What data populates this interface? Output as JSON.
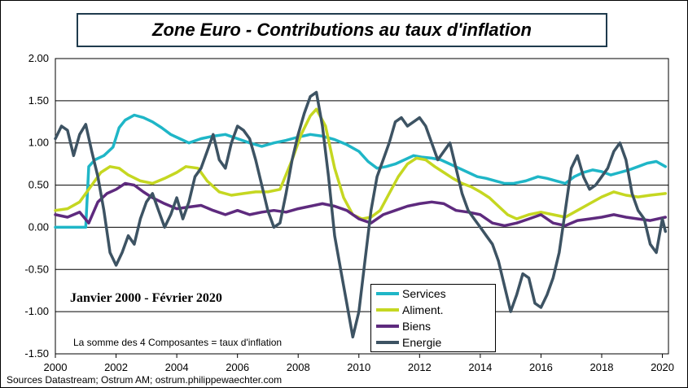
{
  "title": "Zone Euro - Contributions au taux d'inflation",
  "period_label": "Janvier 2000 - Février 2020",
  "note": "La somme des 4 Composantes = taux d'inflation",
  "source": "Sources Datastream; Ostrum AM; ostrum.philippewaechter.com",
  "colors": {
    "services": "#1fb6c7",
    "aliment": "#c5d721",
    "biens": "#5e2a7e",
    "energie": "#3d5363"
  },
  "chart_data": {
    "type": "line",
    "title": "Zone Euro - Contributions au taux d'inflation",
    "xlabel": "",
    "ylabel": "",
    "xlim": [
      2000,
      2020.2
    ],
    "ylim": [
      -1.5,
      2.0
    ],
    "grid": "horizontal",
    "legend_position": "bottom-right",
    "x_ticks": [
      "2000",
      "2002",
      "2004",
      "2006",
      "2008",
      "2010",
      "2012",
      "2014",
      "2016",
      "2018",
      "2020"
    ],
    "y_ticks": [
      "2.00",
      "1.50",
      "1.00",
      "0.50",
      "0.00",
      "-0.50",
      "-1.00",
      "-1.50"
    ],
    "series": [
      {
        "name": "Services",
        "color": "#1fb6c7",
        "points": [
          [
            2000,
            0.0
          ],
          [
            2000.5,
            0.0
          ],
          [
            2001.0,
            0.0
          ],
          [
            2001.1,
            0.72
          ],
          [
            2001.3,
            0.8
          ],
          [
            2001.6,
            0.85
          ],
          [
            2001.9,
            0.95
          ],
          [
            2002.1,
            1.18
          ],
          [
            2002.3,
            1.27
          ],
          [
            2002.6,
            1.33
          ],
          [
            2002.9,
            1.3
          ],
          [
            2003.2,
            1.25
          ],
          [
            2003.5,
            1.18
          ],
          [
            2003.8,
            1.1
          ],
          [
            2004.1,
            1.05
          ],
          [
            2004.4,
            1.0
          ],
          [
            2004.8,
            1.05
          ],
          [
            2005.2,
            1.08
          ],
          [
            2005.6,
            1.1
          ],
          [
            2006.0,
            1.05
          ],
          [
            2006.4,
            1.0
          ],
          [
            2006.8,
            0.96
          ],
          [
            2007.2,
            1.0
          ],
          [
            2007.6,
            1.03
          ],
          [
            2008.0,
            1.07
          ],
          [
            2008.4,
            1.1
          ],
          [
            2008.8,
            1.08
          ],
          [
            2009.2,
            1.04
          ],
          [
            2009.6,
            0.98
          ],
          [
            2010.0,
            0.9
          ],
          [
            2010.3,
            0.78
          ],
          [
            2010.6,
            0.7
          ],
          [
            2010.9,
            0.72
          ],
          [
            2011.2,
            0.75
          ],
          [
            2011.5,
            0.8
          ],
          [
            2011.8,
            0.85
          ],
          [
            2012.1,
            0.83
          ],
          [
            2012.4,
            0.82
          ],
          [
            2012.7,
            0.8
          ],
          [
            2013.0,
            0.75
          ],
          [
            2013.3,
            0.7
          ],
          [
            2013.6,
            0.65
          ],
          [
            2013.9,
            0.6
          ],
          [
            2014.2,
            0.58
          ],
          [
            2014.5,
            0.55
          ],
          [
            2014.8,
            0.52
          ],
          [
            2015.1,
            0.52
          ],
          [
            2015.5,
            0.55
          ],
          [
            2015.9,
            0.6
          ],
          [
            2016.2,
            0.58
          ],
          [
            2016.5,
            0.55
          ],
          [
            2016.8,
            0.52
          ],
          [
            2017.1,
            0.6
          ],
          [
            2017.4,
            0.65
          ],
          [
            2017.7,
            0.68
          ],
          [
            2018.0,
            0.66
          ],
          [
            2018.3,
            0.62
          ],
          [
            2018.6,
            0.65
          ],
          [
            2018.9,
            0.68
          ],
          [
            2019.2,
            0.72
          ],
          [
            2019.5,
            0.76
          ],
          [
            2019.8,
            0.78
          ],
          [
            2020.1,
            0.72
          ]
        ]
      },
      {
        "name": "Aliment.",
        "color": "#c5d721",
        "points": [
          [
            2000,
            0.2
          ],
          [
            2000.4,
            0.22
          ],
          [
            2000.8,
            0.3
          ],
          [
            2001.2,
            0.5
          ],
          [
            2001.5,
            0.65
          ],
          [
            2001.8,
            0.72
          ],
          [
            2002.1,
            0.7
          ],
          [
            2002.4,
            0.62
          ],
          [
            2002.8,
            0.55
          ],
          [
            2003.2,
            0.52
          ],
          [
            2003.6,
            0.58
          ],
          [
            2004.0,
            0.65
          ],
          [
            2004.3,
            0.72
          ],
          [
            2004.7,
            0.7
          ],
          [
            2005.0,
            0.55
          ],
          [
            2005.4,
            0.42
          ],
          [
            2005.8,
            0.38
          ],
          [
            2006.2,
            0.4
          ],
          [
            2006.6,
            0.42
          ],
          [
            2007.0,
            0.42
          ],
          [
            2007.4,
            0.45
          ],
          [
            2007.8,
            0.8
          ],
          [
            2008.1,
            1.1
          ],
          [
            2008.4,
            1.32
          ],
          [
            2008.6,
            1.4
          ],
          [
            2008.9,
            1.2
          ],
          [
            2009.2,
            0.7
          ],
          [
            2009.5,
            0.35
          ],
          [
            2009.8,
            0.15
          ],
          [
            2010.1,
            0.1
          ],
          [
            2010.4,
            0.12
          ],
          [
            2010.7,
            0.2
          ],
          [
            2011.0,
            0.4
          ],
          [
            2011.3,
            0.6
          ],
          [
            2011.6,
            0.75
          ],
          [
            2011.9,
            0.82
          ],
          [
            2012.2,
            0.8
          ],
          [
            2012.5,
            0.72
          ],
          [
            2012.8,
            0.65
          ],
          [
            2013.1,
            0.58
          ],
          [
            2013.4,
            0.52
          ],
          [
            2013.7,
            0.48
          ],
          [
            2014.0,
            0.42
          ],
          [
            2014.3,
            0.35
          ],
          [
            2014.6,
            0.25
          ],
          [
            2014.9,
            0.15
          ],
          [
            2015.2,
            0.1
          ],
          [
            2015.6,
            0.15
          ],
          [
            2016.0,
            0.18
          ],
          [
            2016.4,
            0.15
          ],
          [
            2016.8,
            0.12
          ],
          [
            2017.2,
            0.2
          ],
          [
            2017.6,
            0.28
          ],
          [
            2018.0,
            0.36
          ],
          [
            2018.4,
            0.42
          ],
          [
            2018.8,
            0.38
          ],
          [
            2019.2,
            0.36
          ],
          [
            2019.6,
            0.38
          ],
          [
            2020.1,
            0.4
          ]
        ]
      },
      {
        "name": "Biens",
        "color": "#5e2a7e",
        "points": [
          [
            2000,
            0.15
          ],
          [
            2000.4,
            0.12
          ],
          [
            2000.8,
            0.18
          ],
          [
            2001.1,
            0.05
          ],
          [
            2001.4,
            0.3
          ],
          [
            2001.7,
            0.4
          ],
          [
            2002.0,
            0.45
          ],
          [
            2002.3,
            0.52
          ],
          [
            2002.6,
            0.5
          ],
          [
            2002.9,
            0.42
          ],
          [
            2003.2,
            0.35
          ],
          [
            2003.6,
            0.28
          ],
          [
            2004.0,
            0.22
          ],
          [
            2004.4,
            0.24
          ],
          [
            2004.8,
            0.26
          ],
          [
            2005.2,
            0.2
          ],
          [
            2005.6,
            0.15
          ],
          [
            2006.0,
            0.2
          ],
          [
            2006.4,
            0.15
          ],
          [
            2006.8,
            0.18
          ],
          [
            2007.2,
            0.2
          ],
          [
            2007.6,
            0.18
          ],
          [
            2008.0,
            0.22
          ],
          [
            2008.4,
            0.25
          ],
          [
            2008.8,
            0.28
          ],
          [
            2009.2,
            0.25
          ],
          [
            2009.6,
            0.2
          ],
          [
            2010.0,
            0.1
          ],
          [
            2010.4,
            0.05
          ],
          [
            2010.8,
            0.15
          ],
          [
            2011.2,
            0.2
          ],
          [
            2011.6,
            0.25
          ],
          [
            2012.0,
            0.28
          ],
          [
            2012.4,
            0.3
          ],
          [
            2012.8,
            0.28
          ],
          [
            2013.2,
            0.2
          ],
          [
            2013.6,
            0.18
          ],
          [
            2014.0,
            0.15
          ],
          [
            2014.4,
            0.05
          ],
          [
            2014.8,
            0.02
          ],
          [
            2015.2,
            0.05
          ],
          [
            2015.6,
            0.1
          ],
          [
            2016.0,
            0.15
          ],
          [
            2016.4,
            0.05
          ],
          [
            2016.8,
            0.02
          ],
          [
            2017.2,
            0.08
          ],
          [
            2017.6,
            0.1
          ],
          [
            2018.0,
            0.12
          ],
          [
            2018.4,
            0.15
          ],
          [
            2018.8,
            0.12
          ],
          [
            2019.2,
            0.1
          ],
          [
            2019.6,
            0.08
          ],
          [
            2020.1,
            0.12
          ]
        ]
      },
      {
        "name": "Energie",
        "color": "#3d5363",
        "points": [
          [
            2000,
            1.05
          ],
          [
            2000.2,
            1.2
          ],
          [
            2000.4,
            1.15
          ],
          [
            2000.6,
            0.85
          ],
          [
            2000.8,
            1.1
          ],
          [
            2001.0,
            1.22
          ],
          [
            2001.2,
            0.9
          ],
          [
            2001.4,
            0.6
          ],
          [
            2001.6,
            0.2
          ],
          [
            2001.8,
            -0.3
          ],
          [
            2002.0,
            -0.45
          ],
          [
            2002.2,
            -0.3
          ],
          [
            2002.4,
            -0.1
          ],
          [
            2002.6,
            -0.2
          ],
          [
            2002.8,
            0.1
          ],
          [
            2003.0,
            0.3
          ],
          [
            2003.2,
            0.4
          ],
          [
            2003.4,
            0.2
          ],
          [
            2003.6,
            0.0
          ],
          [
            2003.8,
            0.15
          ],
          [
            2004.0,
            0.35
          ],
          [
            2004.2,
            0.1
          ],
          [
            2004.4,
            0.3
          ],
          [
            2004.6,
            0.6
          ],
          [
            2004.8,
            0.7
          ],
          [
            2005.0,
            0.9
          ],
          [
            2005.2,
            1.1
          ],
          [
            2005.4,
            0.8
          ],
          [
            2005.6,
            0.7
          ],
          [
            2005.8,
            1.0
          ],
          [
            2006.0,
            1.2
          ],
          [
            2006.2,
            1.15
          ],
          [
            2006.4,
            1.05
          ],
          [
            2006.6,
            0.8
          ],
          [
            2006.8,
            0.5
          ],
          [
            2007.0,
            0.2
          ],
          [
            2007.2,
            0.0
          ],
          [
            2007.4,
            0.05
          ],
          [
            2007.6,
            0.4
          ],
          [
            2007.8,
            0.8
          ],
          [
            2008.0,
            1.1
          ],
          [
            2008.2,
            1.35
          ],
          [
            2008.4,
            1.55
          ],
          [
            2008.6,
            1.6
          ],
          [
            2008.8,
            1.2
          ],
          [
            2009.0,
            0.6
          ],
          [
            2009.2,
            -0.1
          ],
          [
            2009.4,
            -0.5
          ],
          [
            2009.6,
            -0.9
          ],
          [
            2009.8,
            -1.3
          ],
          [
            2010.0,
            -1.0
          ],
          [
            2010.2,
            -0.4
          ],
          [
            2010.4,
            0.2
          ],
          [
            2010.6,
            0.6
          ],
          [
            2010.8,
            0.8
          ],
          [
            2011.0,
            1.0
          ],
          [
            2011.2,
            1.25
          ],
          [
            2011.4,
            1.3
          ],
          [
            2011.6,
            1.2
          ],
          [
            2011.8,
            1.25
          ],
          [
            2012.0,
            1.3
          ],
          [
            2012.2,
            1.2
          ],
          [
            2012.4,
            1.0
          ],
          [
            2012.6,
            0.8
          ],
          [
            2012.8,
            0.9
          ],
          [
            2013.0,
            1.0
          ],
          [
            2013.2,
            0.7
          ],
          [
            2013.4,
            0.4
          ],
          [
            2013.6,
            0.2
          ],
          [
            2013.8,
            0.1
          ],
          [
            2014.0,
            0.0
          ],
          [
            2014.2,
            -0.1
          ],
          [
            2014.4,
            -0.2
          ],
          [
            2014.6,
            -0.4
          ],
          [
            2014.8,
            -0.7
          ],
          [
            2015.0,
            -1.0
          ],
          [
            2015.2,
            -0.8
          ],
          [
            2015.4,
            -0.55
          ],
          [
            2015.6,
            -0.6
          ],
          [
            2015.8,
            -0.9
          ],
          [
            2016.0,
            -0.95
          ],
          [
            2016.2,
            -0.8
          ],
          [
            2016.4,
            -0.6
          ],
          [
            2016.6,
            -0.3
          ],
          [
            2016.8,
            0.2
          ],
          [
            2017.0,
            0.7
          ],
          [
            2017.2,
            0.85
          ],
          [
            2017.4,
            0.6
          ],
          [
            2017.6,
            0.45
          ],
          [
            2017.8,
            0.5
          ],
          [
            2018.0,
            0.6
          ],
          [
            2018.2,
            0.7
          ],
          [
            2018.4,
            0.9
          ],
          [
            2018.6,
            1.0
          ],
          [
            2018.8,
            0.8
          ],
          [
            2019.0,
            0.4
          ],
          [
            2019.2,
            0.2
          ],
          [
            2019.4,
            0.1
          ],
          [
            2019.6,
            -0.2
          ],
          [
            2019.8,
            -0.3
          ],
          [
            2020.0,
            0.1
          ],
          [
            2020.1,
            -0.05
          ]
        ]
      }
    ]
  }
}
